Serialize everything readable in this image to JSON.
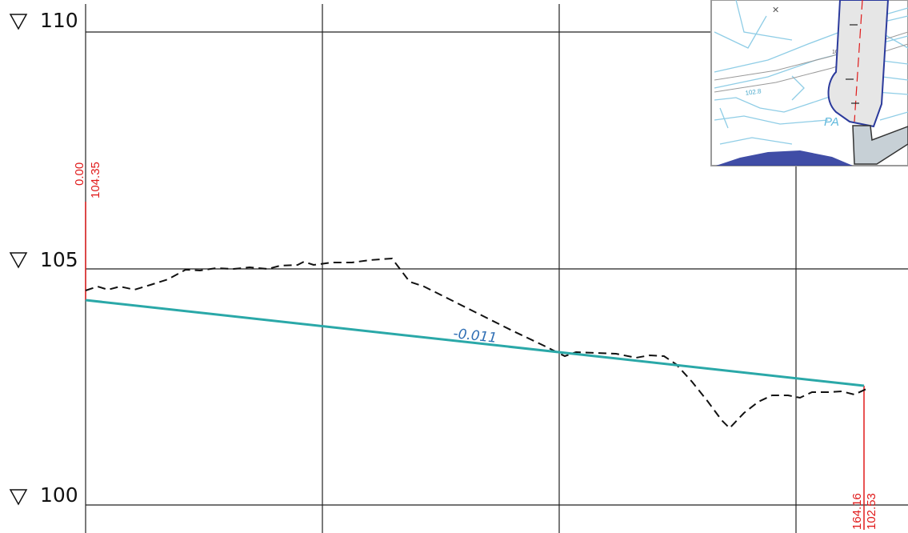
{
  "levels": [
    {
      "label": "110",
      "value": 110
    },
    {
      "label": "105",
      "value": 105
    },
    {
      "label": "100",
      "value": 100
    }
  ],
  "start_point": {
    "station": "0.00",
    "elevation": "104.35"
  },
  "end_point": {
    "station": "164.16",
    "elevation": "102.53"
  },
  "design_line": {
    "slope_label": "-0.011",
    "color": "#2aa8a8"
  },
  "colors": {
    "dimension": "#e01b1b",
    "slope_text": "#2f6fb5",
    "grid": "#222222"
  },
  "inset_map": {
    "labels": [
      "5950",
      "PA",
      "102.8",
      "104"
    ]
  }
}
